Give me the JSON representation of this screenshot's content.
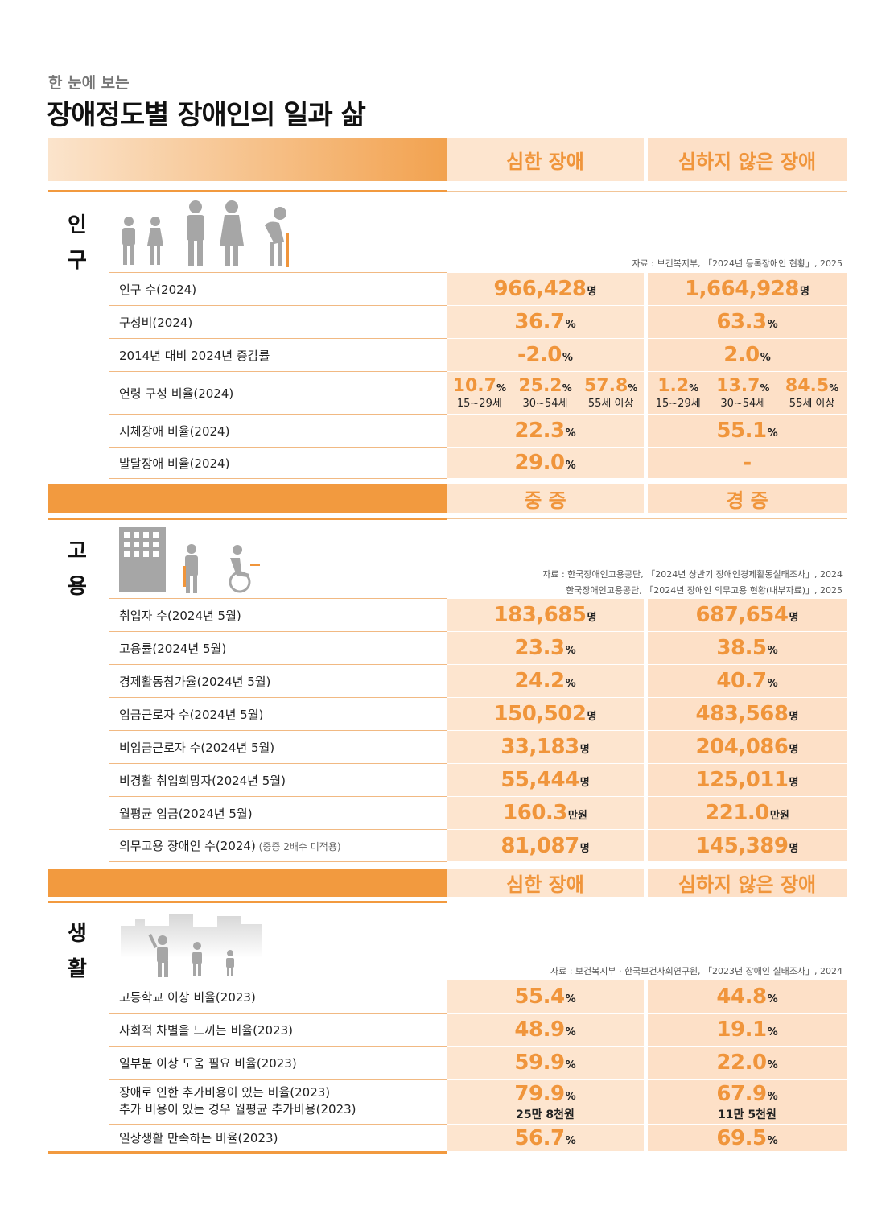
{
  "header": {
    "subtitle": "한 눈에 보는",
    "title": "장애정도별 장애인의 일과 삶"
  },
  "colors": {
    "accent": "#f0953b",
    "band": "#f29a3f",
    "cell_bg": "#fde5cf"
  },
  "population": {
    "section_label": [
      "인",
      "구"
    ],
    "col_headers": [
      "심한 장애",
      "심하지 않은 장애"
    ],
    "source": "자료 : 보건복지부, 「2024년 등록장애인 현황」, 2025",
    "rows": [
      {
        "label": "인구 수(2024)",
        "v1": "966,428",
        "u1": "명",
        "v2": "1,664,928",
        "u2": "명"
      },
      {
        "label": "구성비(2024)",
        "v1": "36.7",
        "u1": "%",
        "v2": "63.3",
        "u2": "%"
      },
      {
        "label": "2014년 대비 2024년 증감률",
        "v1": "-2.0",
        "u1": "%",
        "v2": "2.0",
        "u2": "%"
      },
      {
        "label": "연령 구성 비율(2024)",
        "ages1": [
          {
            "n": "10.7",
            "u": "%",
            "l": "15~29세"
          },
          {
            "n": "25.2",
            "u": "%",
            "l": "30~54세"
          },
          {
            "n": "57.8",
            "u": "%",
            "l": "55세 이상"
          }
        ],
        "ages2": [
          {
            "n": "1.2",
            "u": "%",
            "l": "15~29세"
          },
          {
            "n": "13.7",
            "u": "%",
            "l": "30~54세"
          },
          {
            "n": "84.5",
            "u": "%",
            "l": "55세 이상"
          }
        ]
      },
      {
        "label": "지체장애 비율(2024)",
        "v1": "22.3",
        "u1": "%",
        "v2": "55.1",
        "u2": "%"
      },
      {
        "label": "발달장애 비율(2024)",
        "v1": "29.0",
        "u1": "%",
        "v2": "-",
        "u2": ""
      }
    ]
  },
  "employment": {
    "section_label": [
      "고",
      "용"
    ],
    "col_headers": [
      "중 증",
      "경 증"
    ],
    "source_line1": "자료 : 한국장애인고용공단, 「2024년 상반기 장애인경제활동실태조사」, 2024",
    "source_line2": "한국장애인고용공단, 「2024년 장애인 의무고용 현황(내부자료)」, 2025",
    "rows": [
      {
        "label": "취업자 수(2024년 5월)",
        "v1": "183,685",
        "u1": "명",
        "v2": "687,654",
        "u2": "명"
      },
      {
        "label": "고용률(2024년 5월)",
        "v1": "23.3",
        "u1": "%",
        "v2": "38.5",
        "u2": "%"
      },
      {
        "label": "경제활동참가율(2024년 5월)",
        "v1": "24.2",
        "u1": "%",
        "v2": "40.7",
        "u2": "%"
      },
      {
        "label": "임금근로자 수(2024년 5월)",
        "v1": "150,502",
        "u1": "명",
        "v2": "483,568",
        "u2": "명"
      },
      {
        "label": "비임금근로자 수(2024년 5월)",
        "v1": "33,183",
        "u1": "명",
        "v2": "204,086",
        "u2": "명"
      },
      {
        "label": "비경활 취업희망자(2024년 5월)",
        "v1": "55,444",
        "u1": "명",
        "v2": "125,011",
        "u2": "명"
      },
      {
        "label": "월평균 임금(2024년 5월)",
        "v1": "160.3",
        "u1": "만원",
        "v2": "221.0",
        "u2": "만원"
      },
      {
        "label": "의무고용 장애인 수(2024)",
        "note": "(중증 2배수 미적용)",
        "v1": "81,087",
        "u1": "명",
        "v2": "145,389",
        "u2": "명"
      }
    ]
  },
  "life": {
    "section_label": [
      "생",
      "활"
    ],
    "col_headers": [
      "심한 장애",
      "심하지 않은 장애"
    ],
    "source": "자료 : 보건복지부 · 한국보건사회연구원, 「2023년 장애인 실태조사」, 2024",
    "rows": [
      {
        "label": "고등학교 이상 비율(2023)",
        "v1": "55.4",
        "u1": "%",
        "v2": "44.8",
        "u2": "%"
      },
      {
        "label": "사회적 차별을 느끼는 비율(2023)",
        "v1": "48.9",
        "u1": "%",
        "v2": "19.1",
        "u2": "%"
      },
      {
        "label": "일부분 이상 도움 필요 비율(2023)",
        "v1": "59.9",
        "u1": "%",
        "v2": "22.0",
        "u2": "%"
      },
      {
        "label": "장애로 인한 추가비용이 있는 비율(2023)",
        "label2": "추가 비용이 있는 경우 월평균 추가비용(2023)",
        "v1": "79.9",
        "u1": "%",
        "s1": "25만 8천원",
        "v2": "67.9",
        "u2": "%",
        "s2": "11만 5천원"
      },
      {
        "label": "일상생활 만족하는 비율(2023)",
        "v1": "56.7",
        "u1": "%",
        "v2": "69.5",
        "u2": "%"
      }
    ]
  }
}
